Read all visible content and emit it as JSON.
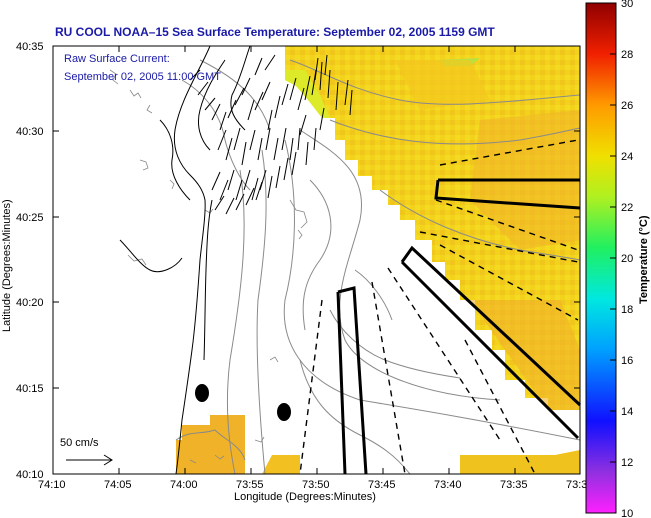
{
  "title": "RU COOL  NOAA–15  Sea Surface Temperature:  September 02, 2005 1159 GMT",
  "current_label": "Raw Surface Current:",
  "current_time": "September 02, 2005 11:00 GMT",
  "scale_label": "50 cm/s",
  "xlabel": "Longitude (Degrees:Minutes)",
  "ylabel": "Latitude (Degrees:Minutes)",
  "x_ticks": [
    "74:10",
    "74:05",
    "74:00",
    "73:55",
    "73:50",
    "73:45",
    "73:40",
    "73:35",
    "73:3"
  ],
  "y_ticks": [
    "40:35",
    "40:30",
    "40:25",
    "40:20",
    "40:15",
    "40:10"
  ],
  "colorbar": {
    "label": "Temperature (°C)",
    "ticks": [
      "30",
      "28",
      "26",
      "24",
      "22",
      "20",
      "18",
      "16",
      "14",
      "12",
      "10"
    ],
    "min": 10,
    "max": 30,
    "colors": {
      "magenta": "#ff00ff",
      "purple": "#8a2be2",
      "blue": "#0000ff",
      "cyan": "#00e5ff",
      "green": "#00ff66",
      "yellow": "#f0f000",
      "orange": "#ff8800",
      "red": "#dd0000",
      "darkred": "#8b0000"
    }
  },
  "colors": {
    "title": "#1a1aa8",
    "sst_yellow": "#f2d21a",
    "sst_orange": "#f0b420",
    "sst_green": "#c8e628",
    "coast": "#000000",
    "bathymetry": "#808080"
  }
}
